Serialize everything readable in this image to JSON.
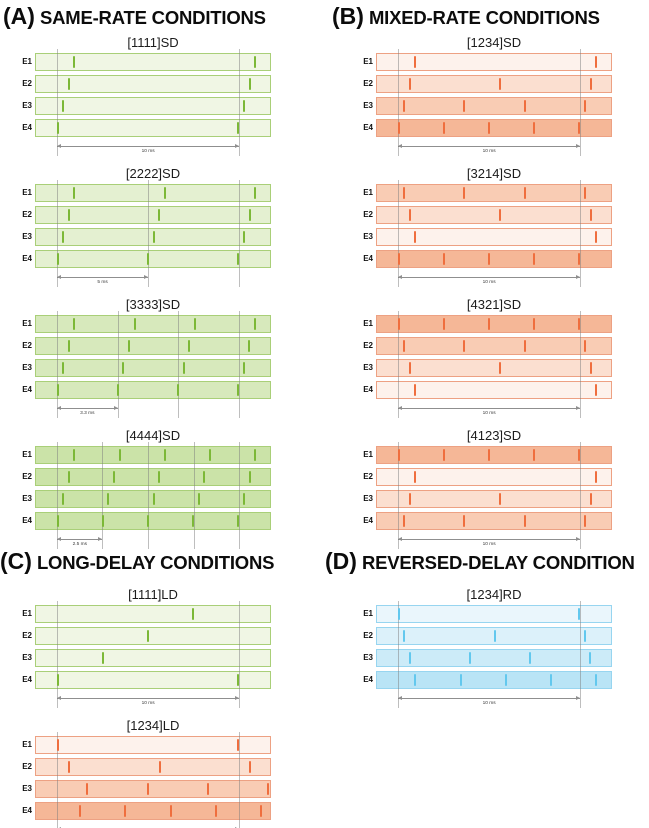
{
  "chart_data": {
    "type": "pulse-train-timing-diagram",
    "time_window_ms": {
      "min": -1.2,
      "max": 11.75
    },
    "base_period_ms": 10,
    "palettes": {
      "green": {
        "row_shades": [
          "#f0f6e4",
          "#e4f0d1",
          "#d7e9bc",
          "#cbe3a8"
        ],
        "pulse": "#7cb837",
        "border": "#a9cf78"
      },
      "orange": {
        "row_shades": [
          "#fdf2ec",
          "#fbdfd0",
          "#f9ccb4",
          "#f5b797"
        ],
        "pulse": "#ef6e3e",
        "border": "#eda183"
      },
      "blue": {
        "row_shades": [
          "#eaf6fc",
          "#dcf1fa",
          "#ccebf8",
          "#b9e4f6"
        ],
        "pulse": "#62c8ee",
        "border": "#97d5f0"
      }
    },
    "panels": [
      {
        "panel": "A",
        "header_letter": "(A)",
        "header_text": "SAME-RATE CONDITIONS",
        "palette": "green",
        "diagrams": [
          {
            "title": "[1111]SD",
            "gridlines_ms": [
              0,
              10
            ],
            "scale": {
              "from_ms": 0,
              "to_ms": 10,
              "label": "10 ms"
            },
            "electrodes": [
              {
                "label": "E1",
                "rate_weight": 1,
                "pulses_ms": [
                  0.93,
                  10.93
                ]
              },
              {
                "label": "E2",
                "rate_weight": 1,
                "pulses_ms": [
                  0.62,
                  10.62
                ]
              },
              {
                "label": "E3",
                "rate_weight": 1,
                "pulses_ms": [
                  0.31,
                  10.31
                ]
              },
              {
                "label": "E4",
                "rate_weight": 1,
                "pulses_ms": [
                  0,
                  10
                ]
              }
            ]
          },
          {
            "title": "[2222]SD",
            "gridlines_ms": [
              0,
              5,
              10
            ],
            "scale": {
              "from_ms": 0,
              "to_ms": 5,
              "label": "5 ms"
            },
            "electrodes": [
              {
                "label": "E1",
                "rate_weight": 2,
                "pulses_ms": [
                  0.93,
                  5.93,
                  10.93
                ]
              },
              {
                "label": "E2",
                "rate_weight": 2,
                "pulses_ms": [
                  0.62,
                  5.62,
                  10.62
                ]
              },
              {
                "label": "E3",
                "rate_weight": 2,
                "pulses_ms": [
                  0.31,
                  5.31,
                  10.31
                ]
              },
              {
                "label": "E4",
                "rate_weight": 2,
                "pulses_ms": [
                  0,
                  5,
                  10
                ]
              }
            ]
          },
          {
            "title": "[3333]SD",
            "gridlines_ms": [
              0,
              3.33,
              6.66,
              10
            ],
            "scale": {
              "from_ms": 0,
              "to_ms": 3.33,
              "label": "3.3 ms"
            },
            "electrodes": [
              {
                "label": "E1",
                "rate_weight": 3,
                "pulses_ms": [
                  0.93,
                  4.26,
                  7.59,
                  10.92
                ]
              },
              {
                "label": "E2",
                "rate_weight": 3,
                "pulses_ms": [
                  0.62,
                  3.95,
                  7.28,
                  10.61
                ]
              },
              {
                "label": "E3",
                "rate_weight": 3,
                "pulses_ms": [
                  0.31,
                  3.64,
                  6.97,
                  10.3
                ]
              },
              {
                "label": "E4",
                "rate_weight": 3,
                "pulses_ms": [
                  0,
                  3.33,
                  6.66,
                  10
                ]
              }
            ]
          },
          {
            "title": "[4444]SD",
            "gridlines_ms": [
              0,
              2.5,
              5,
              7.5,
              10
            ],
            "scale": {
              "from_ms": 0,
              "to_ms": 2.5,
              "label": "2.5 ms"
            },
            "electrodes": [
              {
                "label": "E1",
                "rate_weight": 4,
                "pulses_ms": [
                  0.93,
                  3.43,
                  5.93,
                  8.43,
                  10.93
                ]
              },
              {
                "label": "E2",
                "rate_weight": 4,
                "pulses_ms": [
                  0.62,
                  3.12,
                  5.62,
                  8.12,
                  10.62
                ]
              },
              {
                "label": "E3",
                "rate_weight": 4,
                "pulses_ms": [
                  0.31,
                  2.81,
                  5.31,
                  7.81,
                  10.31
                ]
              },
              {
                "label": "E4",
                "rate_weight": 4,
                "pulses_ms": [
                  0,
                  2.5,
                  5,
                  7.5,
                  10
                ]
              }
            ]
          }
        ]
      },
      {
        "panel": "B",
        "header_letter": "(B)",
        "header_text": "MIXED-RATE CONDITIONS",
        "palette": "orange",
        "diagrams": [
          {
            "title": "[1234]SD",
            "gridlines_ms": [
              0,
              10
            ],
            "scale": {
              "from_ms": 0,
              "to_ms": 10,
              "label": "10 ms"
            },
            "electrodes": [
              {
                "label": "E1",
                "rate_weight": 1,
                "pulses_ms": [
                  0.93,
                  10.93
                ]
              },
              {
                "label": "E2",
                "rate_weight": 2,
                "pulses_ms": [
                  0.62,
                  5.62,
                  10.62
                ]
              },
              {
                "label": "E3",
                "rate_weight": 3,
                "pulses_ms": [
                  0.31,
                  3.64,
                  6.97,
                  10.3
                ]
              },
              {
                "label": "E4",
                "rate_weight": 4,
                "pulses_ms": [
                  0,
                  2.5,
                  5,
                  7.5,
                  10
                ]
              }
            ]
          },
          {
            "title": "[3214]SD",
            "gridlines_ms": [
              0,
              10
            ],
            "scale": {
              "from_ms": 0,
              "to_ms": 10,
              "label": "10 ms"
            },
            "electrodes": [
              {
                "label": "E1",
                "rate_weight": 3,
                "pulses_ms": [
                  0.31,
                  3.64,
                  6.97,
                  10.3
                ]
              },
              {
                "label": "E2",
                "rate_weight": 2,
                "pulses_ms": [
                  0.62,
                  5.62,
                  10.62
                ]
              },
              {
                "label": "E3",
                "rate_weight": 1,
                "pulses_ms": [
                  0.93,
                  10.93
                ]
              },
              {
                "label": "E4",
                "rate_weight": 4,
                "pulses_ms": [
                  0,
                  2.5,
                  5,
                  7.5,
                  10
                ]
              }
            ]
          },
          {
            "title": "[4321]SD",
            "gridlines_ms": [
              0,
              10
            ],
            "scale": {
              "from_ms": 0,
              "to_ms": 10,
              "label": "10 ms"
            },
            "electrodes": [
              {
                "label": "E1",
                "rate_weight": 4,
                "pulses_ms": [
                  0,
                  2.5,
                  5,
                  7.5,
                  10
                ]
              },
              {
                "label": "E2",
                "rate_weight": 3,
                "pulses_ms": [
                  0.31,
                  3.64,
                  6.97,
                  10.3
                ]
              },
              {
                "label": "E3",
                "rate_weight": 2,
                "pulses_ms": [
                  0.62,
                  5.62,
                  10.62
                ]
              },
              {
                "label": "E4",
                "rate_weight": 1,
                "pulses_ms": [
                  0.93,
                  10.93
                ]
              }
            ]
          },
          {
            "title": "[4123]SD",
            "gridlines_ms": [
              0,
              10
            ],
            "scale": {
              "from_ms": 0,
              "to_ms": 10,
              "label": "10 ms"
            },
            "electrodes": [
              {
                "label": "E1",
                "rate_weight": 4,
                "pulses_ms": [
                  0,
                  2.5,
                  5,
                  7.5,
                  10
                ]
              },
              {
                "label": "E2",
                "rate_weight": 1,
                "pulses_ms": [
                  0.93,
                  10.93
                ]
              },
              {
                "label": "E3",
                "rate_weight": 2,
                "pulses_ms": [
                  0.62,
                  5.62,
                  10.62
                ]
              },
              {
                "label": "E4",
                "rate_weight": 3,
                "pulses_ms": [
                  0.31,
                  3.64,
                  6.97,
                  10.3
                ]
              }
            ]
          }
        ]
      },
      {
        "panel": "C",
        "header_letter": "(C)",
        "header_text": "LONG-DELAY CONDITIONS",
        "palette": "green_then_orange",
        "diagrams": [
          {
            "title": "[1111]LD",
            "palette": "green",
            "gridlines_ms": [
              0,
              10
            ],
            "scale": {
              "from_ms": 0,
              "to_ms": 10,
              "label": "10 ms"
            },
            "electrodes": [
              {
                "label": "E1",
                "rate_weight": 1,
                "pulses_ms": [
                  7.5
                ]
              },
              {
                "label": "E2",
                "rate_weight": 1,
                "pulses_ms": [
                  5
                ]
              },
              {
                "label": "E3",
                "rate_weight": 1,
                "pulses_ms": [
                  2.5
                ]
              },
              {
                "label": "E4",
                "rate_weight": 1,
                "pulses_ms": [
                  0,
                  10
                ]
              }
            ]
          },
          {
            "title": "[1234]LD",
            "palette": "orange",
            "gridlines_ms": [
              0,
              10
            ],
            "scale": {
              "from_ms": 0,
              "to_ms": 10,
              "label": "10 ms"
            },
            "electrodes": [
              {
                "label": "E1",
                "rate_weight": 1,
                "pulses_ms": [
                  0,
                  10
                ]
              },
              {
                "label": "E2",
                "rate_weight": 2,
                "pulses_ms": [
                  0.65,
                  5.65,
                  10.65
                ]
              },
              {
                "label": "E3",
                "rate_weight": 3,
                "pulses_ms": [
                  1.65,
                  4.98,
                  8.31,
                  11.64
                ]
              },
              {
                "label": "E4",
                "rate_weight": 4,
                "pulses_ms": [
                  1.25,
                  3.75,
                  6.25,
                  8.75,
                  11.25
                ]
              }
            ]
          }
        ]
      },
      {
        "panel": "D",
        "header_letter": "(D)",
        "header_text": "REVERSED-DELAY CONDITION",
        "palette": "blue",
        "diagrams": [
          {
            "title": "[1234]RD",
            "gridlines_ms": [
              0,
              10
            ],
            "scale": {
              "from_ms": 0,
              "to_ms": 10,
              "label": "10 ms"
            },
            "electrodes": [
              {
                "label": "E1",
                "rate_weight": 1,
                "pulses_ms": [
                  0,
                  10
                ]
              },
              {
                "label": "E2",
                "rate_weight": 2,
                "pulses_ms": [
                  0.31,
                  5.31,
                  10.31
                ]
              },
              {
                "label": "E3",
                "rate_weight": 3,
                "pulses_ms": [
                  0.62,
                  3.95,
                  7.28,
                  10.61
                ]
              },
              {
                "label": "E4",
                "rate_weight": 4,
                "pulses_ms": [
                  0.93,
                  3.43,
                  5.93,
                  8.43,
                  10.93
                ]
              }
            ]
          }
        ]
      }
    ]
  }
}
